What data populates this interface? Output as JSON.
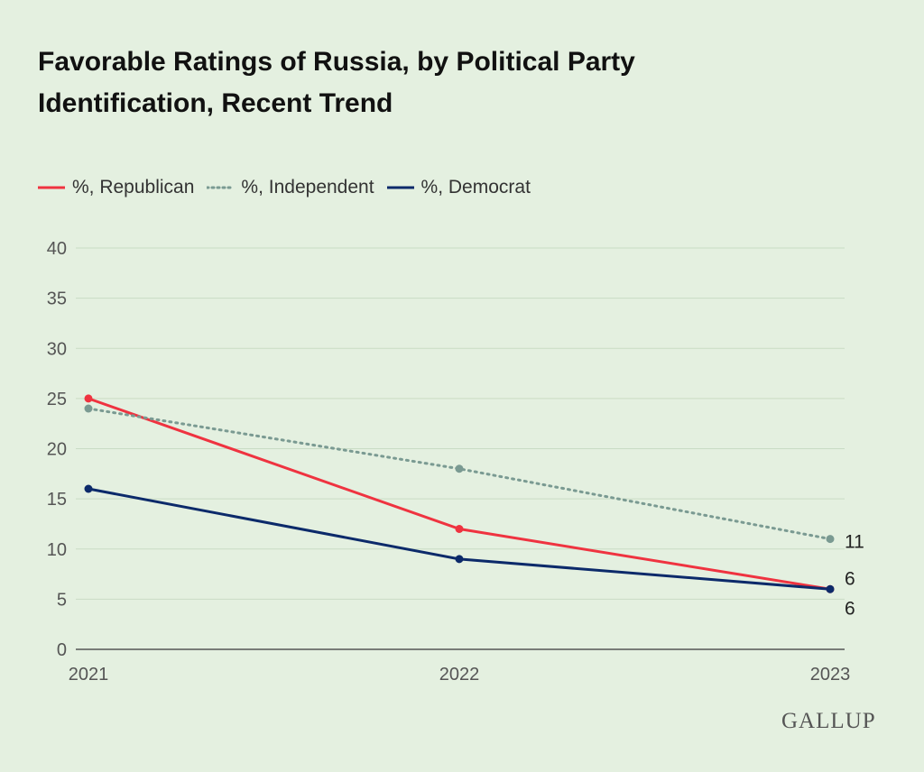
{
  "chart_data": {
    "type": "line",
    "title": "Favorable Ratings of Russia, by Political Party Identification, Recent Trend",
    "x": [
      "2021",
      "2022",
      "2023"
    ],
    "ylim": [
      0,
      40
    ],
    "yticks": [
      0,
      5,
      10,
      15,
      20,
      25,
      30,
      35,
      40
    ],
    "grid": true,
    "legend_position": "top-left",
    "series": [
      {
        "name": "%, Republican",
        "values": [
          25,
          12,
          6
        ],
        "color": "#ef3340",
        "dashed": false,
        "end_label": "6"
      },
      {
        "name": "%, Independent",
        "values": [
          24,
          18,
          11
        ],
        "color": "#7a9a92",
        "dashed": true,
        "end_label": "11"
      },
      {
        "name": "%, Democrat",
        "values": [
          16,
          9,
          6
        ],
        "color": "#0c2a6a",
        "dashed": false,
        "end_label": "6"
      }
    ]
  },
  "brand": "GALLUP"
}
